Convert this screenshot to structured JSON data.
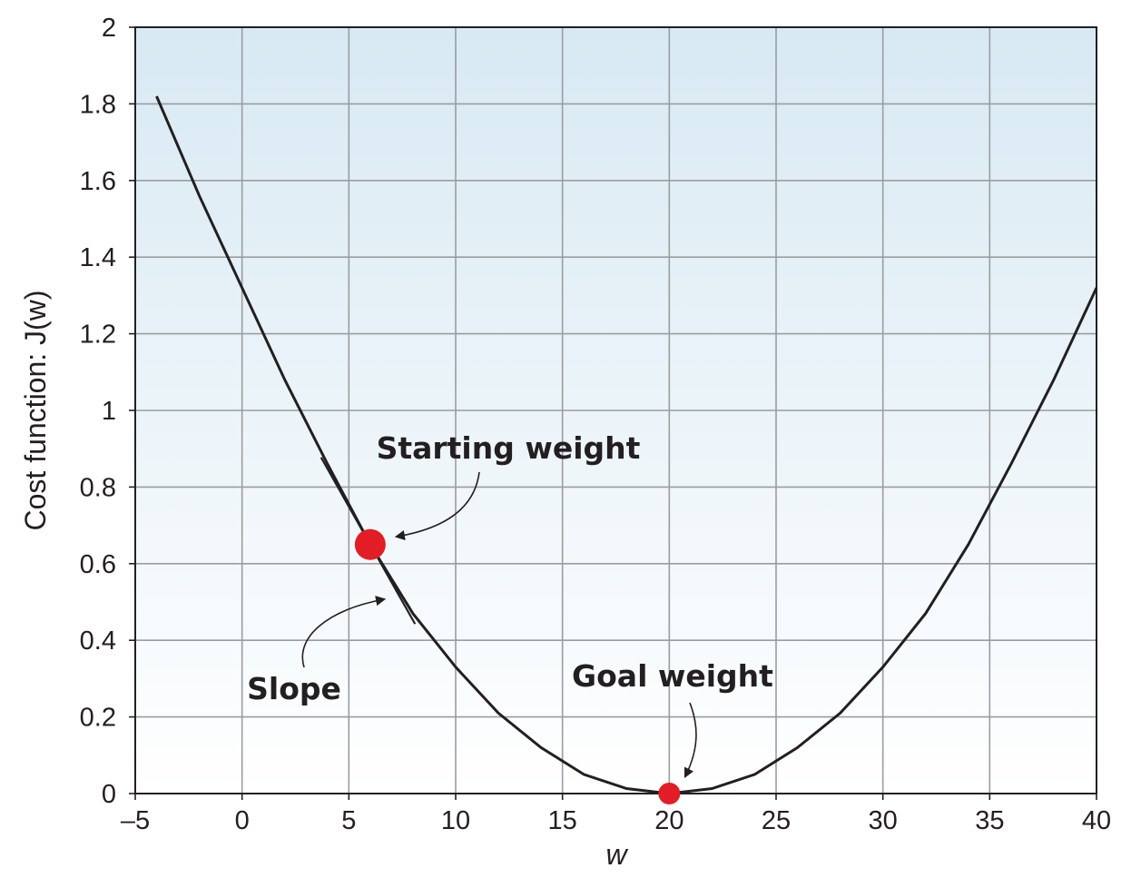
{
  "chart_data": {
    "type": "line",
    "title": "",
    "xlabel": "w",
    "ylabel": "Cost function: J(w)",
    "xlim": [
      -5,
      40
    ],
    "ylim": [
      0,
      2
    ],
    "grid": true,
    "x_ticks": [
      -5,
      0,
      5,
      10,
      15,
      20,
      25,
      30,
      35,
      40
    ],
    "y_ticks": [
      0,
      0.2,
      0.4,
      0.6,
      0.8,
      1,
      1.2,
      1.4,
      1.6,
      1.8,
      2
    ],
    "x_tick_labels": [
      "–5",
      "0",
      "5",
      "10",
      "15",
      "20",
      "25",
      "30",
      "35",
      "40"
    ],
    "y_tick_labels": [
      "0",
      "0.2",
      "0.4",
      "0.6",
      "0.8",
      "1",
      "1.2",
      "1.4",
      "1.6",
      "1.8",
      "2"
    ],
    "series": [
      {
        "x": [
          -4,
          -2,
          0,
          2,
          4,
          6,
          8,
          10,
          12,
          14,
          16,
          18,
          20,
          22,
          24,
          26,
          28,
          30,
          32,
          34,
          36,
          38,
          40
        ],
        "y": [
          1.82,
          1.56,
          1.32,
          1.08,
          0.86,
          0.65,
          0.47,
          0.33,
          0.21,
          0.12,
          0.05,
          0.013,
          0.0,
          0.013,
          0.05,
          0.12,
          0.21,
          0.33,
          0.47,
          0.65,
          0.86,
          1.08,
          1.32
        ],
        "color": "#231f20"
      }
    ],
    "points": [
      {
        "x": 6,
        "y": 0.65,
        "color": "#e31d25",
        "size": "large"
      },
      {
        "x": 20,
        "y": 0.0,
        "color": "#e31d25",
        "size": "small"
      }
    ],
    "tangent": {
      "x": 6,
      "y": 0.65,
      "slope": -0.0988,
      "x_from": 3.7,
      "x_to": 8.1
    },
    "annotations": [
      {
        "text": "Starting weight",
        "points_to": "starting point"
      },
      {
        "text": "Slope",
        "points_to": "tangent line"
      },
      {
        "text": "Goal weight",
        "points_to": "minimum point"
      }
    ],
    "colors": {
      "plot_top": "#d8e9f3",
      "plot_bottom": "#ffffff",
      "marker": "#e31d25",
      "line": "#231f20"
    }
  }
}
